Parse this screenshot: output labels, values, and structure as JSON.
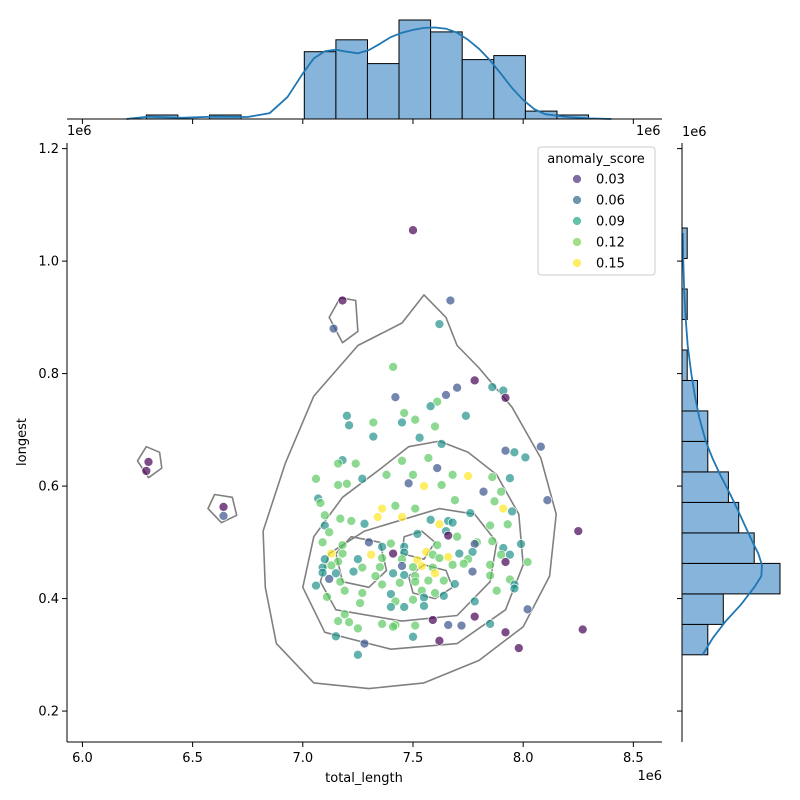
{
  "chart_data": {
    "type": "scatter",
    "xlabel": "total_length",
    "ylabel": "longest",
    "x_exponent_label": "1e6",
    "y_exponent_label": "1e6",
    "xlim": [
      5.93,
      8.63
    ],
    "ylim": [
      0.145,
      1.21
    ],
    "x_ticks": [
      6.0,
      6.5,
      7.0,
      7.5,
      8.0,
      8.5
    ],
    "x_tick_labels": [
      "6.0",
      "6.5",
      "7.0",
      "7.5",
      "8.0",
      "8.5"
    ],
    "y_ticks": [
      0.2,
      0.4,
      0.6,
      0.8,
      1.0,
      1.2
    ],
    "y_tick_labels": [
      "0.2",
      "0.4",
      "0.6",
      "0.8",
      "1.0",
      "1.2"
    ],
    "legend": {
      "title": "anomaly_score",
      "position": "upper right",
      "entries": [
        {
          "label": "0.03",
          "color": "#472d7b"
        },
        {
          "label": "0.06",
          "color": "#31688e"
        },
        {
          "label": "0.09",
          "color": "#21a685"
        },
        {
          "label": "0.12",
          "color": "#7ad151"
        },
        {
          "label": "0.15",
          "color": "#fde725"
        }
      ]
    },
    "marker_alpha": 0.7,
    "contour_color": "#808080",
    "kde_color": "#1f77b4",
    "hist_color": "#86b4da",
    "points": [
      [
        7.5,
        1.055,
        0.04
      ],
      [
        7.18,
        0.93,
        0.02
      ],
      [
        7.14,
        0.88,
        0.06
      ],
      [
        7.67,
        0.93,
        0.07
      ],
      [
        7.62,
        0.888,
        0.09
      ],
      [
        6.3,
        0.643,
        0.03
      ],
      [
        6.29,
        0.627,
        0.02
      ],
      [
        6.64,
        0.563,
        0.02
      ],
      [
        6.64,
        0.547,
        0.05
      ],
      [
        7.41,
        0.812,
        0.11
      ],
      [
        7.78,
        0.788,
        0.04
      ],
      [
        7.7,
        0.775,
        0.05
      ],
      [
        7.91,
        0.77,
        0.1
      ],
      [
        7.86,
        0.776,
        0.08
      ],
      [
        7.92,
        0.757,
        0.01
      ],
      [
        7.42,
        0.758,
        0.07
      ],
      [
        7.65,
        0.762,
        0.05
      ],
      [
        7.61,
        0.75,
        0.12
      ],
      [
        7.58,
        0.742,
        0.1
      ],
      [
        7.2,
        0.725,
        0.09
      ],
      [
        7.46,
        0.73,
        0.13
      ],
      [
        7.74,
        0.725,
        0.08
      ],
      [
        7.21,
        0.708,
        0.1
      ],
      [
        7.32,
        0.713,
        0.12
      ],
      [
        7.45,
        0.713,
        0.09
      ],
      [
        7.6,
        0.706,
        0.12
      ],
      [
        7.51,
        0.718,
        0.13
      ],
      [
        7.32,
        0.688,
        0.08
      ],
      [
        7.53,
        0.686,
        0.09
      ],
      [
        8.08,
        0.67,
        0.05
      ],
      [
        7.63,
        0.675,
        0.1
      ],
      [
        7.92,
        0.663,
        0.06
      ],
      [
        7.96,
        0.66,
        0.08
      ],
      [
        8.01,
        0.651,
        0.1
      ],
      [
        7.18,
        0.646,
        0.09
      ],
      [
        7.16,
        0.64,
        0.11
      ],
      [
        7.24,
        0.64,
        0.12
      ],
      [
        7.45,
        0.645,
        0.12
      ],
      [
        7.57,
        0.65,
        0.13
      ],
      [
        7.5,
        0.62,
        0.11
      ],
      [
        7.61,
        0.632,
        0.05
      ],
      [
        7.68,
        0.62,
        0.12
      ],
      [
        7.75,
        0.618,
        0.14
      ],
      [
        7.86,
        0.616,
        0.12
      ],
      [
        7.94,
        0.614,
        0.1
      ],
      [
        7.06,
        0.613,
        0.11
      ],
      [
        7.27,
        0.613,
        0.09
      ],
      [
        7.38,
        0.62,
        0.12
      ],
      [
        7.16,
        0.602,
        0.12
      ],
      [
        7.2,
        0.604,
        0.13
      ],
      [
        7.48,
        0.605,
        0.07
      ],
      [
        7.55,
        0.6,
        0.14
      ],
      [
        7.63,
        0.602,
        0.13
      ],
      [
        7.82,
        0.59,
        0.05
      ],
      [
        7.9,
        0.59,
        0.11
      ],
      [
        7.07,
        0.578,
        0.08
      ],
      [
        7.08,
        0.57,
        0.11
      ],
      [
        7.36,
        0.56,
        0.15
      ],
      [
        7.42,
        0.565,
        0.11
      ],
      [
        7.51,
        0.56,
        0.11
      ],
      [
        7.69,
        0.575,
        0.13
      ],
      [
        7.87,
        0.573,
        0.12
      ],
      [
        7.91,
        0.56,
        0.14
      ],
      [
        7.95,
        0.555,
        0.1
      ],
      [
        8.11,
        0.575,
        0.05
      ],
      [
        7.1,
        0.548,
        0.12
      ],
      [
        7.17,
        0.542,
        0.11
      ],
      [
        7.34,
        0.545,
        0.14
      ],
      [
        7.45,
        0.545,
        0.14
      ],
      [
        7.58,
        0.54,
        0.1
      ],
      [
        7.66,
        0.538,
        0.09
      ],
      [
        7.76,
        0.552,
        0.09
      ],
      [
        7.1,
        0.53,
        0.1
      ],
      [
        7.22,
        0.538,
        0.12
      ],
      [
        7.28,
        0.533,
        0.1
      ],
      [
        7.62,
        0.532,
        0.14
      ],
      [
        7.68,
        0.535,
        0.1
      ],
      [
        7.85,
        0.53,
        0.11
      ],
      [
        7.93,
        0.532,
        0.12
      ],
      [
        7.12,
        0.518,
        0.13
      ],
      [
        7.3,
        0.5,
        0.05
      ],
      [
        7.52,
        0.515,
        0.09
      ],
      [
        7.65,
        0.52,
        0.09
      ],
      [
        7.66,
        0.512,
        0.02
      ],
      [
        7.7,
        0.51,
        0.13
      ],
      [
        7.79,
        0.5,
        0.11
      ],
      [
        7.86,
        0.502,
        0.12
      ],
      [
        7.99,
        0.497,
        0.09
      ],
      [
        8.25,
        0.52,
        0.02
      ],
      [
        7.09,
        0.5,
        0.12
      ],
      [
        7.18,
        0.495,
        0.11
      ],
      [
        7.36,
        0.492,
        0.1
      ],
      [
        7.4,
        0.498,
        0.13
      ],
      [
        7.46,
        0.492,
        0.09
      ],
      [
        7.61,
        0.495,
        0.13
      ],
      [
        7.78,
        0.497,
        0.06
      ],
      [
        7.91,
        0.49,
        0.1
      ],
      [
        7.13,
        0.48,
        0.14
      ],
      [
        7.18,
        0.48,
        0.12
      ],
      [
        7.31,
        0.478,
        0.14
      ],
      [
        7.41,
        0.48,
        0.02
      ],
      [
        7.46,
        0.482,
        0.08
      ],
      [
        7.56,
        0.483,
        0.14
      ],
      [
        7.59,
        0.478,
        0.11
      ],
      [
        7.71,
        0.48,
        0.09
      ],
      [
        7.77,
        0.483,
        0.1
      ],
      [
        7.9,
        0.478,
        0.13
      ],
      [
        7.94,
        0.478,
        0.09
      ],
      [
        7.1,
        0.47,
        0.08
      ],
      [
        7.16,
        0.466,
        0.12
      ],
      [
        7.25,
        0.47,
        0.09
      ],
      [
        7.36,
        0.472,
        0.13
      ],
      [
        7.45,
        0.47,
        0.13
      ],
      [
        7.52,
        0.468,
        0.15
      ],
      [
        7.62,
        0.472,
        0.13
      ],
      [
        7.66,
        0.474,
        0.14
      ],
      [
        7.75,
        0.47,
        0.11
      ],
      [
        7.92,
        0.465,
        0.02
      ],
      [
        7.09,
        0.455,
        0.1
      ],
      [
        7.13,
        0.459,
        0.12
      ],
      [
        7.27,
        0.455,
        0.12
      ],
      [
        7.35,
        0.456,
        0.11
      ],
      [
        7.45,
        0.458,
        0.05
      ],
      [
        7.5,
        0.456,
        0.12
      ],
      [
        7.54,
        0.458,
        0.15
      ],
      [
        7.59,
        0.455,
        0.13
      ],
      [
        7.68,
        0.46,
        0.12
      ],
      [
        7.73,
        0.462,
        0.11
      ],
      [
        7.85,
        0.46,
        0.12
      ],
      [
        8.02,
        0.465,
        0.11
      ],
      [
        7.09,
        0.446,
        0.09
      ],
      [
        7.15,
        0.445,
        0.08
      ],
      [
        7.23,
        0.448,
        0.09
      ],
      [
        7.33,
        0.44,
        0.13
      ],
      [
        7.41,
        0.445,
        0.1
      ],
      [
        7.46,
        0.442,
        0.09
      ],
      [
        7.51,
        0.44,
        0.12
      ],
      [
        7.6,
        0.445,
        0.14
      ],
      [
        7.64,
        0.432,
        0.13
      ],
      [
        7.77,
        0.448,
        0.06
      ],
      [
        7.85,
        0.441,
        0.12
      ],
      [
        7.94,
        0.434,
        0.11
      ],
      [
        7.12,
        0.435,
        0.07
      ],
      [
        7.17,
        0.43,
        0.12
      ],
      [
        7.36,
        0.425,
        0.12
      ],
      [
        7.44,
        0.428,
        0.11
      ],
      [
        7.51,
        0.43,
        0.12
      ],
      [
        7.57,
        0.432,
        0.11
      ],
      [
        7.69,
        0.426,
        0.09
      ],
      [
        7.96,
        0.425,
        0.08
      ],
      [
        7.06,
        0.423,
        0.08
      ],
      [
        7.19,
        0.414,
        0.12
      ],
      [
        7.27,
        0.41,
        0.11
      ],
      [
        7.4,
        0.408,
        0.1
      ],
      [
        7.54,
        0.414,
        0.12
      ],
      [
        7.6,
        0.41,
        0.11
      ],
      [
        7.88,
        0.414,
        0.12
      ],
      [
        7.96,
        0.418,
        0.09
      ],
      [
        7.11,
        0.403,
        0.11
      ],
      [
        7.26,
        0.392,
        0.12
      ],
      [
        7.42,
        0.395,
        0.12
      ],
      [
        7.5,
        0.398,
        0.11
      ],
      [
        7.55,
        0.402,
        0.09
      ],
      [
        7.64,
        0.405,
        0.1
      ],
      [
        7.78,
        0.395,
        0.1
      ],
      [
        7.4,
        0.385,
        0.08
      ],
      [
        7.46,
        0.385,
        0.1
      ],
      [
        7.55,
        0.387,
        0.09
      ],
      [
        8.02,
        0.381,
        0.07
      ],
      [
        7.19,
        0.372,
        0.12
      ],
      [
        7.16,
        0.36,
        0.12
      ],
      [
        7.21,
        0.358,
        0.11
      ],
      [
        7.36,
        0.355,
        0.12
      ],
      [
        7.42,
        0.353,
        0.11
      ],
      [
        7.51,
        0.352,
        0.12
      ],
      [
        7.59,
        0.362,
        0.03
      ],
      [
        7.66,
        0.353,
        0.07
      ],
      [
        7.72,
        0.352,
        0.07
      ],
      [
        7.78,
        0.368,
        0.02
      ],
      [
        7.85,
        0.355,
        0.1
      ],
      [
        7.25,
        0.347,
        0.12
      ],
      [
        7.41,
        0.35,
        0.11
      ],
      [
        7.15,
        0.333,
        0.09
      ],
      [
        7.5,
        0.332,
        0.08
      ],
      [
        7.62,
        0.325,
        0.04
      ],
      [
        7.92,
        0.34,
        0.02
      ],
      [
        7.98,
        0.312,
        0.04
      ],
      [
        8.27,
        0.345,
        0.01
      ],
      [
        7.28,
        0.32,
        0.07
      ],
      [
        7.25,
        0.3,
        0.08
      ]
    ],
    "top_hist": {
      "bin_edges": [
        6.29,
        6.4333,
        6.5767,
        6.72,
        6.8633,
        7.0067,
        7.15,
        7.2933,
        7.4367,
        7.58,
        7.7233,
        7.8667,
        8.01,
        8.1533,
        8.2967
      ],
      "counts": [
        1,
        0,
        1,
        0,
        0,
        17,
        20,
        14,
        25,
        22,
        15,
        16,
        2,
        1
      ]
    },
    "top_kde": [
      [
        6.2,
        0.0
      ],
      [
        6.3,
        0.6
      ],
      [
        6.45,
        0.3
      ],
      [
        6.6,
        0.6
      ],
      [
        6.75,
        0.5
      ],
      [
        6.85,
        1.5
      ],
      [
        6.93,
        5.5
      ],
      [
        7.0,
        11.5
      ],
      [
        7.05,
        15.3
      ],
      [
        7.1,
        17.1
      ],
      [
        7.15,
        17.5
      ],
      [
        7.2,
        17.0
      ],
      [
        7.25,
        16.6
      ],
      [
        7.3,
        17.4
      ],
      [
        7.35,
        19.0
      ],
      [
        7.4,
        20.7
      ],
      [
        7.45,
        21.8
      ],
      [
        7.5,
        22.5
      ],
      [
        7.55,
        23.0
      ],
      [
        7.6,
        23.1
      ],
      [
        7.65,
        22.8
      ],
      [
        7.7,
        21.8
      ],
      [
        7.75,
        20.0
      ],
      [
        7.8,
        17.7
      ],
      [
        7.85,
        14.8
      ],
      [
        7.9,
        11.4
      ],
      [
        7.95,
        7.8
      ],
      [
        8.0,
        4.8
      ],
      [
        8.05,
        2.5
      ],
      [
        8.1,
        1.2
      ],
      [
        8.2,
        0.5
      ],
      [
        8.3,
        0.15
      ],
      [
        8.4,
        0.0
      ]
    ],
    "right_hist": {
      "bin_edges": [
        0.3,
        0.3542,
        0.4084,
        0.4626,
        0.5168,
        0.571,
        0.6252,
        0.6794,
        0.7336,
        0.7878,
        0.842,
        0.8962,
        0.9504,
        1.0046,
        1.0588
      ],
      "counts": [
        5,
        8,
        19,
        14,
        11,
        9,
        5,
        5,
        3,
        1,
        0,
        1,
        0,
        1
      ]
    },
    "right_kde": [
      [
        0.3,
        4.0
      ],
      [
        0.33,
        6.0
      ],
      [
        0.36,
        8.5
      ],
      [
        0.39,
        11.5
      ],
      [
        0.42,
        14.0
      ],
      [
        0.44,
        15.4
      ],
      [
        0.46,
        15.5
      ],
      [
        0.48,
        14.8
      ],
      [
        0.5,
        13.7
      ],
      [
        0.53,
        12.2
      ],
      [
        0.56,
        10.7
      ],
      [
        0.59,
        9.1
      ],
      [
        0.62,
        7.4
      ],
      [
        0.65,
        5.9
      ],
      [
        0.68,
        4.6
      ],
      [
        0.72,
        3.4
      ],
      [
        0.76,
        2.5
      ],
      [
        0.8,
        1.8
      ],
      [
        0.85,
        1.1
      ],
      [
        0.9,
        0.7
      ],
      [
        0.95,
        0.4
      ],
      [
        1.0,
        0.25
      ],
      [
        1.05,
        0.15
      ]
    ],
    "contours": [
      [
        [
          7.05,
          0.25
        ],
        [
          7.3,
          0.24
        ],
        [
          7.55,
          0.25
        ],
        [
          7.8,
          0.29
        ],
        [
          8.0,
          0.35
        ],
        [
          8.12,
          0.44
        ],
        [
          8.15,
          0.55
        ],
        [
          8.08,
          0.65
        ],
        [
          7.95,
          0.74
        ],
        [
          7.8,
          0.81
        ],
        [
          7.7,
          0.85
        ],
        [
          7.65,
          0.9
        ],
        [
          7.55,
          0.94
        ],
        [
          7.45,
          0.89
        ],
        [
          7.25,
          0.85
        ],
        [
          7.05,
          0.76
        ],
        [
          6.92,
          0.64
        ],
        [
          6.82,
          0.52
        ],
        [
          6.83,
          0.42
        ],
        [
          6.88,
          0.32
        ]
      ],
      [
        [
          7.1,
          0.34
        ],
        [
          7.4,
          0.31
        ],
        [
          7.7,
          0.32
        ],
        [
          7.92,
          0.38
        ],
        [
          8.0,
          0.46
        ],
        [
          7.98,
          0.55
        ],
        [
          7.88,
          0.62
        ],
        [
          7.75,
          0.66
        ],
        [
          7.62,
          0.68
        ],
        [
          7.48,
          0.67
        ],
        [
          7.35,
          0.63
        ],
        [
          7.18,
          0.58
        ],
        [
          7.05,
          0.51
        ],
        [
          7.0,
          0.42
        ]
      ],
      [
        [
          7.15,
          0.38
        ],
        [
          7.45,
          0.36
        ],
        [
          7.7,
          0.37
        ],
        [
          7.85,
          0.43
        ],
        [
          7.88,
          0.5
        ],
        [
          7.78,
          0.55
        ],
        [
          7.62,
          0.56
        ],
        [
          7.45,
          0.54
        ],
        [
          7.28,
          0.52
        ],
        [
          7.12,
          0.48
        ],
        [
          7.08,
          0.43
        ]
      ],
      [
        [
          7.18,
          0.43
        ],
        [
          7.3,
          0.42
        ],
        [
          7.38,
          0.45
        ],
        [
          7.35,
          0.5
        ],
        [
          7.22,
          0.51
        ],
        [
          7.15,
          0.48
        ]
      ],
      [
        [
          7.5,
          0.41
        ],
        [
          7.6,
          0.4
        ],
        [
          7.68,
          0.42
        ],
        [
          7.65,
          0.45
        ],
        [
          7.55,
          0.46
        ],
        [
          7.48,
          0.44
        ]
      ],
      [
        [
          7.45,
          0.48
        ],
        [
          7.55,
          0.47
        ],
        [
          7.6,
          0.5
        ],
        [
          7.54,
          0.52
        ],
        [
          7.46,
          0.51
        ]
      ],
      [
        [
          7.12,
          0.9
        ],
        [
          7.18,
          0.855
        ],
        [
          7.25,
          0.875
        ],
        [
          7.24,
          0.93
        ],
        [
          7.17,
          0.935
        ]
      ],
      [
        [
          6.25,
          0.645
        ],
        [
          6.3,
          0.615
        ],
        [
          6.36,
          0.632
        ],
        [
          6.35,
          0.66
        ],
        [
          6.29,
          0.67
        ]
      ],
      [
        [
          6.57,
          0.56
        ],
        [
          6.63,
          0.535
        ],
        [
          6.7,
          0.548
        ],
        [
          6.68,
          0.58
        ],
        [
          6.6,
          0.585
        ]
      ]
    ]
  }
}
